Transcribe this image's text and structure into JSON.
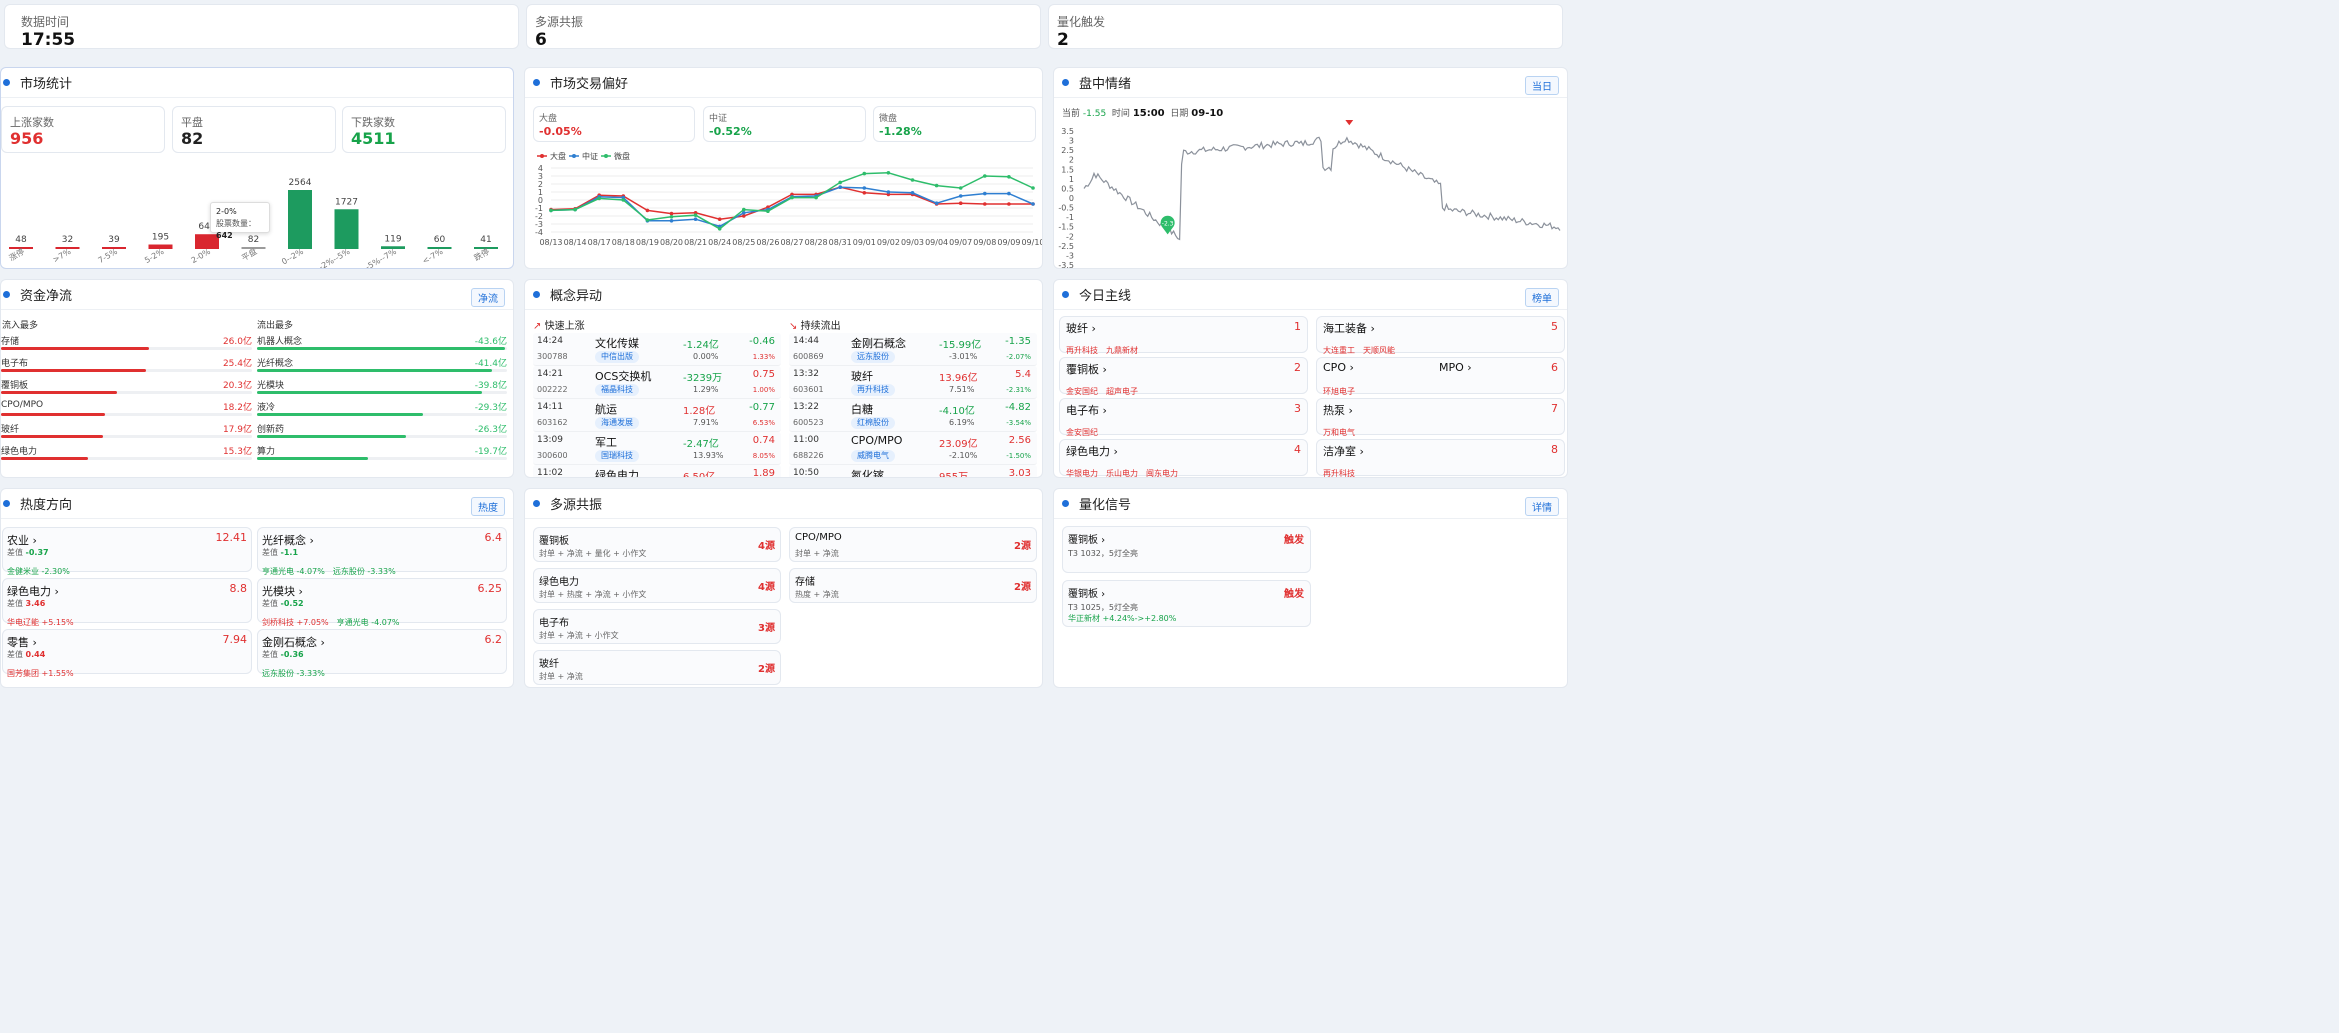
{
  "top": [
    {
      "label": "数据时间",
      "value": "17:55"
    },
    {
      "label": "多源共振",
      "value": "6"
    },
    {
      "label": "量化触发",
      "value": "2"
    }
  ],
  "market": {
    "title": "市场统计",
    "up": {
      "label": "上涨家数",
      "value": "956"
    },
    "flat": {
      "label": "平盘",
      "value": "82"
    },
    "down": {
      "label": "下跌家数",
      "value": "4511"
    },
    "tooltip": {
      "title": "2-0%",
      "label": "股票数量：",
      "value": "642"
    }
  },
  "chart_data": [
    {
      "type": "bar",
      "categories": [
        "涨停",
        ">7%",
        "7-5%",
        "5-2%",
        "2-0%",
        "平盘",
        "0--2%",
        "-2%--5%",
        "-5%--7%",
        "<-7%",
        "跌停"
      ],
      "values": [
        48,
        32,
        39,
        195,
        642,
        82,
        2564,
        1727,
        119,
        60,
        41
      ],
      "colors": [
        "#d9262f",
        "#d9262f",
        "#d9262f",
        "#d9262f",
        "#d9262f",
        "#9b9b9b",
        "#1d9b5f",
        "#1d9b5f",
        "#1d9b5f",
        "#1d9b5f",
        "#1d9b5f"
      ]
    },
    {
      "type": "line",
      "x": [
        "08/13",
        "08/14",
        "08/17",
        "08/18",
        "08/19",
        "08/20",
        "08/21",
        "08/24",
        "08/25",
        "08/26",
        "08/27",
        "08/28",
        "08/31",
        "09/01",
        "09/02",
        "09/03",
        "09/04",
        "09/07",
        "09/08",
        "09/09",
        "09/10"
      ],
      "ylim": [
        -4,
        4
      ],
      "series": [
        {
          "name": "大盘",
          "color": "#e03030",
          "values": [
            -1.2,
            -1.1,
            0.6,
            0.5,
            -1.3,
            -1.7,
            -1.6,
            -2.4,
            -2.0,
            -0.9,
            0.7,
            0.7,
            1.6,
            0.9,
            0.7,
            0.7,
            -0.5,
            -0.4,
            -0.5,
            -0.5,
            -0.5
          ]
        },
        {
          "name": "中证",
          "color": "#2f7fd1",
          "values": [
            -1.3,
            -1.2,
            0.4,
            0.3,
            -2.6,
            -2.6,
            -2.4,
            -3.3,
            -1.6,
            -1.2,
            0.4,
            0.5,
            1.6,
            1.5,
            1.0,
            0.9,
            -0.4,
            0.5,
            0.8,
            0.8,
            -0.5
          ]
        },
        {
          "name": "微盘",
          "color": "#2ebd6b",
          "values": [
            -1.3,
            -1.2,
            0.2,
            0.0,
            -2.5,
            -2.1,
            -1.9,
            -3.6,
            -1.2,
            -1.4,
            0.3,
            0.3,
            2.2,
            3.3,
            3.4,
            2.5,
            1.8,
            1.5,
            3.0,
            2.9,
            1.5
          ]
        }
      ]
    },
    {
      "type": "line",
      "ylim": [
        -3.5,
        3.5
      ],
      "current": -1.55,
      "time": "15:00",
      "date": "09-10",
      "max": 3.2,
      "min": -2.3
    }
  ],
  "trade": {
    "title": "市场交易偏好",
    "items": [
      {
        "label": "大盘",
        "value": "-0.05%"
      },
      {
        "label": "中证",
        "value": "-0.52%"
      },
      {
        "label": "微盘",
        "value": "-1.28%"
      }
    ]
  },
  "sentiment": {
    "title": "盘中情绪",
    "btn": "当日",
    "current_label": "当前",
    "current": "-1.55",
    "time_label": "时间",
    "time": "15:00",
    "date_label": "日期",
    "date": "09-10",
    "max_tag": "3.2",
    "min_tag": "-2.3",
    "yticks": [
      "3.5",
      "3",
      "2.5",
      "2",
      "1.5",
      "1",
      "0.5",
      "0",
      "-0.5",
      "-1",
      "-1.5",
      "-2",
      "-2.5",
      "-3",
      "-3.5"
    ]
  },
  "flow": {
    "title": "资金净流",
    "btn": "净流",
    "in_title": "流入最多",
    "out_title": "流出最多",
    "in": [
      {
        "name": "存储",
        "value": "26.0亿",
        "pct": 100
      },
      {
        "name": "电子布",
        "value": "25.4亿",
        "pct": 98
      },
      {
        "name": "覆铜板",
        "value": "20.3亿",
        "pct": 78
      },
      {
        "name": "CPO/MPO",
        "value": "18.2亿",
        "pct": 70
      },
      {
        "name": "玻纤",
        "value": "17.9亿",
        "pct": 69
      },
      {
        "name": "绿色电力",
        "value": "15.3亿",
        "pct": 59
      }
    ],
    "out": [
      {
        "name": "机器人概念",
        "value": "-43.6亿",
        "pct": 100
      },
      {
        "name": "光纤概念",
        "value": "-41.4亿",
        "pct": 95
      },
      {
        "name": "光模块",
        "value": "-39.8亿",
        "pct": 91
      },
      {
        "name": "液冷",
        "value": "-29.3亿",
        "pct": 67
      },
      {
        "name": "创新药",
        "value": "-26.3亿",
        "pct": 60
      },
      {
        "name": "算力",
        "value": "-19.7亿",
        "pct": 45
      }
    ]
  },
  "concept": {
    "title": "概念异动",
    "up_title": "快速上涨",
    "out_title": "持续流出",
    "up": [
      {
        "time": "14:24",
        "name": "文化传媒",
        "flow": "-1.24亿",
        "chg": "-0.46",
        "code": "300788",
        "stock": "中信出版",
        "pct": "0.00%",
        "pct2": "1.33%"
      },
      {
        "time": "14:21",
        "name": "OCS交换机",
        "flow": "-3239万",
        "chg": "0.75",
        "code": "002222",
        "stock": "福晶科技",
        "pct": "1.29%",
        "pct2": "1.00%"
      },
      {
        "time": "14:11",
        "name": "航运",
        "flow": "1.28亿",
        "chg": "-0.77",
        "code": "603162",
        "stock": "海通发展",
        "pct": "7.91%",
        "pct2": "6.53%"
      },
      {
        "time": "13:09",
        "name": "军工",
        "flow": "-2.47亿",
        "chg": "0.74",
        "code": "300600",
        "stock": "国瑞科技",
        "pct": "13.93%",
        "pct2": "8.05%"
      },
      {
        "time": "11:02",
        "name": "绿色电力",
        "flow": "6.50亿",
        "chg": "1.89",
        "code": "",
        "stock": "",
        "pct": "",
        "pct2": ""
      }
    ],
    "down": [
      {
        "time": "14:44",
        "name": "金刚石概念",
        "flow": "-15.99亿",
        "chg": "-1.35",
        "code": "600869",
        "stock": "远东股份",
        "pct": "-3.01%",
        "pct2": "-2.07%"
      },
      {
        "time": "13:32",
        "name": "玻纤",
        "flow": "13.96亿",
        "chg": "5.4",
        "code": "603601",
        "stock": "再升科技",
        "pct": "7.51%",
        "pct2": "-2.31%"
      },
      {
        "time": "13:22",
        "name": "白糖",
        "flow": "-4.10亿",
        "chg": "-4.82",
        "code": "600523",
        "stock": "红棉股份",
        "pct": "6.19%",
        "pct2": "-3.54%"
      },
      {
        "time": "11:00",
        "name": "CPO/MPO",
        "flow": "23.09亿",
        "chg": "2.56",
        "code": "688226",
        "stock": "威腾电气",
        "pct": "-2.10%",
        "pct2": "-1.50%"
      },
      {
        "time": "10:50",
        "name": "氮化镓",
        "flow": "955万",
        "chg": "3.03",
        "code": "",
        "stock": "",
        "pct": "",
        "pct2": ""
      }
    ]
  },
  "mainline": {
    "title": "今日主线",
    "btn": "榜单",
    "items": [
      {
        "name": "玻纤",
        "rank": "1",
        "stocks": [
          "再升科技",
          "九鼎新材"
        ]
      },
      {
        "name": "海工装备",
        "rank": "5",
        "stocks": [
          "大连重工",
          "天顺风能"
        ]
      },
      {
        "name": "覆铜板",
        "rank": "2",
        "stocks": [
          "金安国纪",
          "超声电子"
        ]
      },
      {
        "name": "CPO",
        "name2": "MPO",
        "rank": "6",
        "stocks": [
          "环旭电子"
        ]
      },
      {
        "name": "电子布",
        "rank": "3",
        "stocks": [
          "金安国纪"
        ]
      },
      {
        "name": "热泵",
        "rank": "7",
        "stocks": [
          "万和电气"
        ]
      },
      {
        "name": "绿色电力",
        "rank": "4",
        "stocks": [
          "华银电力",
          "乐山电力",
          "闽东电力"
        ]
      },
      {
        "name": "洁净室",
        "rank": "8",
        "stocks": [
          "再升科技"
        ]
      }
    ]
  },
  "heat": {
    "title": "热度方向",
    "btn": "热度",
    "items": [
      {
        "name": "农业",
        "score": "12.41",
        "diff_label": "差值",
        "diff": "-0.37",
        "diffc": "green",
        "stocks": [
          {
            "t": "金健米业 -2.30%",
            "c": "green"
          }
        ]
      },
      {
        "name": "光纤概念",
        "score": "6.4",
        "diff_label": "差值",
        "diff": "-1.1",
        "diffc": "green",
        "stocks": [
          {
            "t": "亨通光电 -4.07%",
            "c": "green"
          },
          {
            "t": "远东股份 -3.33%",
            "c": "green"
          }
        ]
      },
      {
        "name": "绿色电力",
        "score": "8.8",
        "diff_label": "差值",
        "diff": "3.46",
        "diffc": "red",
        "stocks": [
          {
            "t": "华电辽能 +5.15%",
            "c": "red"
          }
        ]
      },
      {
        "name": "光模块",
        "score": "6.25",
        "diff_label": "差值",
        "diff": "-0.52",
        "diffc": "green",
        "stocks": [
          {
            "t": "剑桥科技 +7.05%",
            "c": "red"
          },
          {
            "t": "亨通光电 -4.07%",
            "c": "green"
          }
        ]
      },
      {
        "name": "零售",
        "score": "7.94",
        "diff_label": "差值",
        "diff": "0.44",
        "diffc": "red",
        "stocks": [
          {
            "t": "国芳集团 +1.55%",
            "c": "red"
          }
        ]
      },
      {
        "name": "金刚石概念",
        "score": "6.2",
        "diff_label": "差值",
        "diff": "-0.36",
        "diffc": "green",
        "stocks": [
          {
            "t": "远东股份 -3.33%",
            "c": "green"
          }
        ]
      }
    ]
  },
  "resonance": {
    "title": "多源共振",
    "items": [
      {
        "name": "覆铜板",
        "src": "封单 + 净流 + 量化 + 小作文",
        "cnt": "4源"
      },
      {
        "name": "CPO/MPO",
        "src": "封单 + 净流",
        "cnt": "2源"
      },
      {
        "name": "绿色电力",
        "src": "封单 + 热度 + 净流 + 小作文",
        "cnt": "4源"
      },
      {
        "name": "存储",
        "src": "热度 + 净流",
        "cnt": "2源"
      },
      {
        "name": "电子布",
        "src": "封单 + 净流 + 小作文",
        "cnt": "3源"
      },
      {
        "name": "玻纤",
        "src": "封单 + 净流",
        "cnt": "2源"
      }
    ]
  },
  "quant": {
    "title": "量化信号",
    "btn": "详情",
    "items": [
      {
        "name": "覆铜板",
        "tag": "触发",
        "desc": "T3 1032，5灯全亮",
        "extra": ""
      },
      {
        "name": "覆铜板",
        "tag": "触发",
        "desc": "T3 1025，5灯全亮",
        "extra": "华正新材 +4.24%->+2.80%"
      }
    ]
  }
}
